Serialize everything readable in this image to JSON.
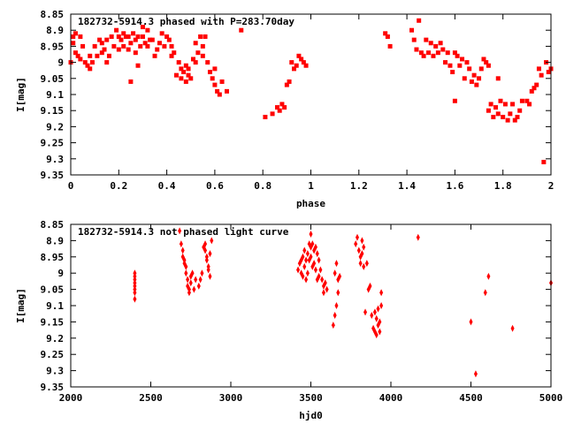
{
  "chart_data": [
    {
      "type": "scatter",
      "title": "182732-5914.3 phased with P=283.70day",
      "xlabel": "phase",
      "ylabel": "I[mag]",
      "xlim": [
        0,
        2
      ],
      "ylim": [
        8.85,
        9.35
      ],
      "y_inverted": true,
      "xticks": [
        "0",
        "0.2",
        "0.4",
        "0.6",
        "0.8",
        "1",
        "1.2",
        "1.4",
        "1.6",
        "1.8",
        "2"
      ],
      "yticks": [
        "8.85",
        "8.9",
        "8.95",
        "9",
        "9.05",
        "9.1",
        "9.15",
        "9.2",
        "9.25",
        "9.3",
        "9.35"
      ],
      "grid": false,
      "marker": "filled-square",
      "color": "#ff0000",
      "series": [
        {
          "x": [
            0.0,
            0.01,
            0.01,
            0.02,
            0.02,
            0.03,
            0.04,
            0.04,
            0.05,
            0.06,
            0.07,
            0.08,
            0.08,
            0.09,
            0.1,
            0.11,
            0.12,
            0.13,
            0.13,
            0.14,
            0.15,
            0.15,
            0.16,
            0.17,
            0.18,
            0.19,
            0.2,
            0.2,
            0.21,
            0.22,
            0.22,
            0.23,
            0.24,
            0.24,
            0.25,
            0.25,
            0.26,
            0.27,
            0.27,
            0.28,
            0.28,
            0.29,
            0.3,
            0.3,
            0.31,
            0.32,
            0.32,
            0.33,
            0.34,
            0.35,
            0.36,
            0.37,
            0.38,
            0.39,
            0.4,
            0.41,
            0.42,
            0.42,
            0.43,
            0.44,
            0.45,
            0.46,
            0.46,
            0.47,
            0.48,
            0.48,
            0.49,
            0.49,
            0.5,
            0.51,
            0.52,
            0.52,
            0.53,
            0.54,
            0.55,
            0.55,
            0.56,
            0.57,
            0.58,
            0.59,
            0.6,
            0.6,
            0.61,
            0.62,
            0.63,
            0.65,
            0.71,
            0.81,
            0.84,
            0.86,
            0.87,
            0.88,
            0.89,
            0.9,
            0.91,
            0.92,
            0.93,
            0.94,
            0.95,
            0.96,
            0.97,
            0.98,
            1.31,
            1.32,
            1.33,
            1.42,
            1.43,
            1.44,
            1.45,
            1.46,
            1.47,
            1.48,
            1.49,
            1.5,
            1.51,
            1.52,
            1.53,
            1.54,
            1.55,
            1.56,
            1.57,
            1.58,
            1.59,
            1.6,
            1.6,
            1.61,
            1.62,
            1.63,
            1.64,
            1.65,
            1.66,
            1.67,
            1.68,
            1.69,
            1.7,
            1.71,
            1.72,
            1.73,
            1.74,
            1.74,
            1.75,
            1.76,
            1.77,
            1.78,
            1.78,
            1.79,
            1.8,
            1.81,
            1.82,
            1.83,
            1.84,
            1.85,
            1.86,
            1.87,
            1.88,
            1.9,
            1.91,
            1.92,
            1.93,
            1.94,
            1.95,
            1.96,
            1.97,
            1.98,
            1.99,
            2.0
          ],
          "y": [
            9.0,
            8.94,
            8.92,
            8.97,
            8.91,
            8.98,
            8.92,
            8.99,
            8.95,
            9.0,
            9.01,
            9.02,
            8.98,
            9.0,
            8.95,
            8.98,
            8.93,
            8.97,
            8.94,
            8.96,
            9.0,
            8.93,
            8.98,
            8.92,
            8.95,
            8.9,
            8.96,
            8.92,
            8.93,
            8.91,
            8.95,
            8.92,
            8.96,
            8.92,
            9.06,
            8.94,
            8.91,
            8.93,
            8.97,
            8.92,
            9.01,
            8.95,
            8.92,
            8.89,
            8.94,
            8.9,
            8.95,
            8.93,
            8.93,
            8.98,
            8.96,
            8.94,
            8.91,
            8.95,
            8.92,
            8.93,
            8.95,
            8.98,
            8.97,
            9.04,
            9.0,
            9.02,
            9.05,
            9.03,
            9.01,
            9.06,
            9.04,
            9.02,
            9.05,
            8.99,
            8.94,
            9.0,
            8.97,
            8.92,
            8.98,
            8.95,
            8.92,
            9.0,
            9.03,
            9.05,
            9.07,
            9.02,
            9.09,
            9.1,
            9.06,
            9.09,
            8.9,
            9.17,
            9.16,
            9.14,
            9.15,
            9.13,
            9.14,
            9.07,
            9.06,
            9.0,
            9.02,
            9.01,
            8.98,
            8.99,
            9.0,
            9.01,
            8.91,
            8.92,
            8.95,
            8.9,
            8.93,
            8.96,
            8.87,
            8.97,
            8.98,
            8.93,
            8.97,
            8.94,
            8.98,
            8.95,
            8.97,
            8.94,
            8.96,
            9.0,
            8.97,
            9.01,
            9.03,
            8.97,
            9.12,
            8.98,
            9.01,
            8.99,
            9.05,
            9.0,
            9.02,
            9.06,
            9.04,
            9.07,
            9.05,
            9.02,
            8.99,
            9.0,
            9.01,
            9.15,
            9.13,
            9.17,
            9.14,
            9.05,
            9.16,
            9.12,
            9.17,
            9.13,
            9.18,
            9.16,
            9.13,
            9.18,
            9.17,
            9.15,
            9.12,
            9.12,
            9.13,
            9.09,
            9.08,
            9.07,
            9.02,
            9.04,
            9.31,
            9.0,
            9.03,
            9.02
          ]
        }
      ]
    },
    {
      "type": "scatter",
      "title": "182732-5914.3 not phased light curve",
      "xlabel": "hjd0",
      "ylabel": "I[mag]",
      "xlim": [
        2000,
        5000
      ],
      "ylim": [
        8.85,
        9.35
      ],
      "y_inverted": true,
      "xticks": [
        "2000",
        "2500",
        "3000",
        "3500",
        "4000",
        "4500",
        "5000"
      ],
      "yticks": [
        "8.85",
        "8.9",
        "8.95",
        "9",
        "9.05",
        "9.1",
        "9.15",
        "9.2",
        "9.25",
        "9.3",
        "9.35"
      ],
      "grid": false,
      "marker": "filled-diamond",
      "color": "#ff0000",
      "series": [
        {
          "x": [
            2400,
            2400,
            2400,
            2400,
            2400,
            2400,
            2400,
            2400,
            2680,
            2690,
            2700,
            2700,
            2710,
            2710,
            2720,
            2720,
            2730,
            2730,
            2740,
            2740,
            2750,
            2750,
            2760,
            2770,
            2780,
            2800,
            2810,
            2820,
            2830,
            2840,
            2840,
            2850,
            2850,
            2860,
            2860,
            2870,
            2870,
            2880,
            3420,
            3430,
            3440,
            3440,
            3450,
            3450,
            3460,
            3460,
            3470,
            3470,
            3480,
            3480,
            3490,
            3490,
            3500,
            3500,
            3500,
            3510,
            3510,
            3520,
            3520,
            3530,
            3530,
            3540,
            3540,
            3550,
            3550,
            3560,
            3570,
            3580,
            3580,
            3590,
            3600,
            3640,
            3650,
            3650,
            3660,
            3660,
            3670,
            3670,
            3680,
            3780,
            3790,
            3800,
            3810,
            3810,
            3820,
            3820,
            3830,
            3830,
            3840,
            3850,
            3860,
            3870,
            3880,
            3890,
            3900,
            3900,
            3910,
            3910,
            3920,
            3920,
            3930,
            3930,
            3940,
            3940,
            4170,
            4500,
            4530,
            4590,
            4610,
            4760,
            5000
          ],
          "y": [
            9.0,
            9.01,
            9.02,
            9.03,
            9.04,
            9.05,
            9.06,
            9.08,
            8.87,
            8.91,
            8.93,
            8.95,
            8.96,
            8.97,
            8.98,
            9.0,
            9.02,
            9.04,
            9.05,
            9.06,
            9.03,
            9.01,
            9.0,
            9.05,
            9.02,
            9.04,
            9.02,
            9.0,
            8.92,
            8.91,
            8.93,
            8.95,
            8.96,
            8.98,
            8.99,
            8.94,
            9.01,
            8.9,
            8.99,
            8.97,
            9.0,
            8.96,
            9.01,
            8.95,
            8.98,
            8.93,
            9.02,
            8.96,
            8.94,
            9.0,
            8.91,
            8.96,
            8.88,
            8.92,
            8.95,
            8.91,
            8.98,
            8.93,
            8.97,
            8.92,
            8.99,
            8.94,
            9.02,
            8.96,
            9.01,
            8.99,
            9.02,
            9.04,
            9.06,
            9.03,
            9.05,
            9.16,
            9.13,
            9.0,
            9.1,
            8.97,
            9.02,
            9.06,
            9.01,
            8.91,
            8.89,
            8.93,
            8.95,
            8.97,
            8.94,
            8.9,
            8.98,
            8.92,
            9.12,
            8.97,
            9.05,
            9.04,
            9.13,
            9.17,
            9.12,
            9.18,
            9.14,
            9.19,
            9.11,
            9.16,
            9.15,
            9.18,
            9.06,
            9.1,
            8.89,
            9.15,
            9.31,
            9.06,
            9.01,
            9.17,
            9.03
          ]
        }
      ]
    }
  ]
}
